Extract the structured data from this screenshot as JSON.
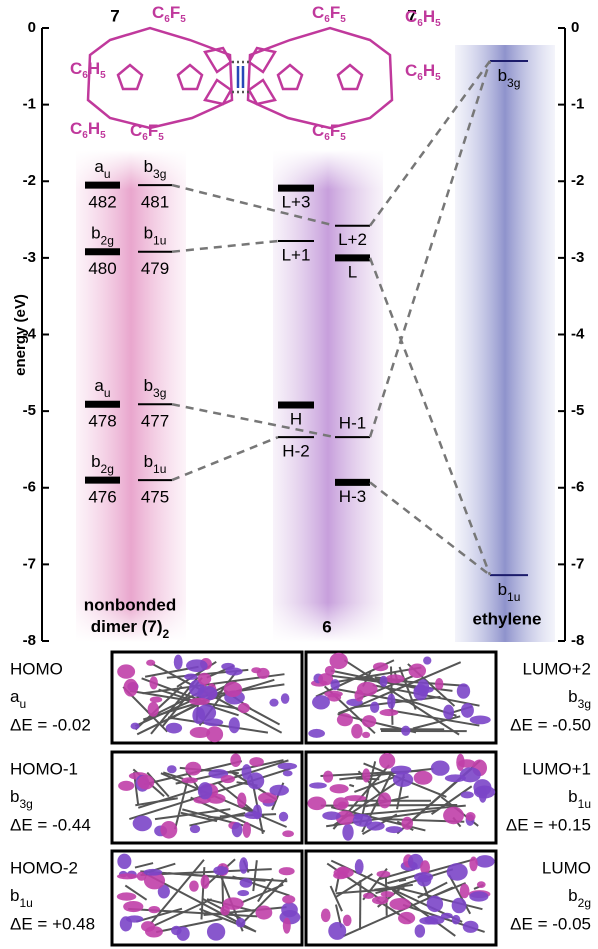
{
  "chart_data": {
    "type": "energy-level",
    "ylabel": "energy (eV)",
    "ylim": [
      -8,
      0
    ],
    "yticks": [
      0,
      -1,
      -2,
      -3,
      -4,
      -5,
      -6,
      -7,
      -8
    ],
    "molecules": [
      {
        "label": "7",
        "substituents": [
          [
            "C",
            "6",
            "F",
            "5"
          ],
          [
            "C",
            "6",
            "H",
            "5"
          ],
          [
            "C",
            "6",
            "H",
            "5"
          ],
          [
            "C",
            "6",
            "F",
            "5"
          ]
        ]
      },
      {
        "label": "7",
        "substituents": [
          [
            "C",
            "6",
            "F",
            "5"
          ],
          [
            "C",
            "6",
            "H",
            "5"
          ],
          [
            "C",
            "6",
            "H",
            "5"
          ],
          [
            "C",
            "6",
            "F",
            "5"
          ]
        ]
      }
    ],
    "columns": [
      {
        "title": [
          "nonbonded",
          "dimer (7)"
        ],
        "title_sub": "2"
      },
      {
        "title": [
          "6"
        ]
      },
      {
        "title": [
          "ethylene"
        ]
      }
    ],
    "levels": [
      {
        "column": 0,
        "energy": -2.05,
        "style": "thick",
        "irrep": [
          "a",
          "u"
        ],
        "number": 482
      },
      {
        "column": 0,
        "energy": -2.05,
        "style": "thin",
        "irrep": [
          "b",
          "3g"
        ],
        "number": 481
      },
      {
        "column": 0,
        "energy": -2.92,
        "style": "thick",
        "irrep": [
          "b",
          "2g"
        ],
        "number": 480
      },
      {
        "column": 0,
        "energy": -2.92,
        "style": "thin",
        "irrep": [
          "b",
          "1u"
        ],
        "number": 479
      },
      {
        "column": 0,
        "energy": -4.91,
        "style": "thick",
        "irrep": [
          "a",
          "u"
        ],
        "number": 478
      },
      {
        "column": 0,
        "energy": -4.91,
        "style": "thin",
        "irrep": [
          "b",
          "3g"
        ],
        "number": 477
      },
      {
        "column": 0,
        "energy": -5.9,
        "style": "thick",
        "irrep": [
          "b",
          "2g"
        ],
        "number": 476
      },
      {
        "column": 0,
        "energy": -5.9,
        "style": "thin",
        "irrep": [
          "b",
          "1u"
        ],
        "number": 475
      },
      {
        "column": 1,
        "energy": -2.09,
        "style": "thick",
        "label": "L+3"
      },
      {
        "column": 1,
        "energy": -2.78,
        "style": "thin",
        "label": "L+1"
      },
      {
        "column": 1,
        "energy": -4.92,
        "style": "thick",
        "label": "H"
      },
      {
        "column": 1,
        "energy": -5.34,
        "style": "thin",
        "label": "H-2"
      },
      {
        "column": 1,
        "energy": -2.58,
        "style": "thin",
        "label": "L+2"
      },
      {
        "column": 1,
        "energy": -3.0,
        "style": "thick",
        "label": "L"
      },
      {
        "column": 1,
        "energy": -5.34,
        "style": "thin",
        "label": "H-1"
      },
      {
        "column": 1,
        "energy": -5.93,
        "style": "thick",
        "label": "H-3"
      },
      {
        "column": 2,
        "energy": -0.43,
        "style": "thin",
        "irrep": [
          "b",
          "3g"
        ]
      },
      {
        "column": 2,
        "energy": -7.14,
        "style": "thin",
        "irrep": [
          "b",
          "1u"
        ]
      }
    ]
  },
  "orbitals": [
    {
      "name": "HOMO",
      "irrep": [
        "a",
        "u"
      ],
      "delta": "ΔE = -0.02"
    },
    {
      "name": "LUMO+2",
      "irrep": [
        "b",
        "3g"
      ],
      "delta": "ΔE = -0.50"
    },
    {
      "name": "HOMO-1",
      "irrep": [
        "b",
        "3g"
      ],
      "delta": "ΔE = -0.44"
    },
    {
      "name": "LUMO+1",
      "irrep": [
        "b",
        "1u"
      ],
      "delta": "ΔE = +0.15"
    },
    {
      "name": "HOMO-2",
      "irrep": [
        "b",
        "1u"
      ],
      "delta": "ΔE = +0.48"
    },
    {
      "name": "LUMO",
      "irrep": [
        "b",
        "2g"
      ],
      "delta": "ΔE = -0.05"
    }
  ]
}
